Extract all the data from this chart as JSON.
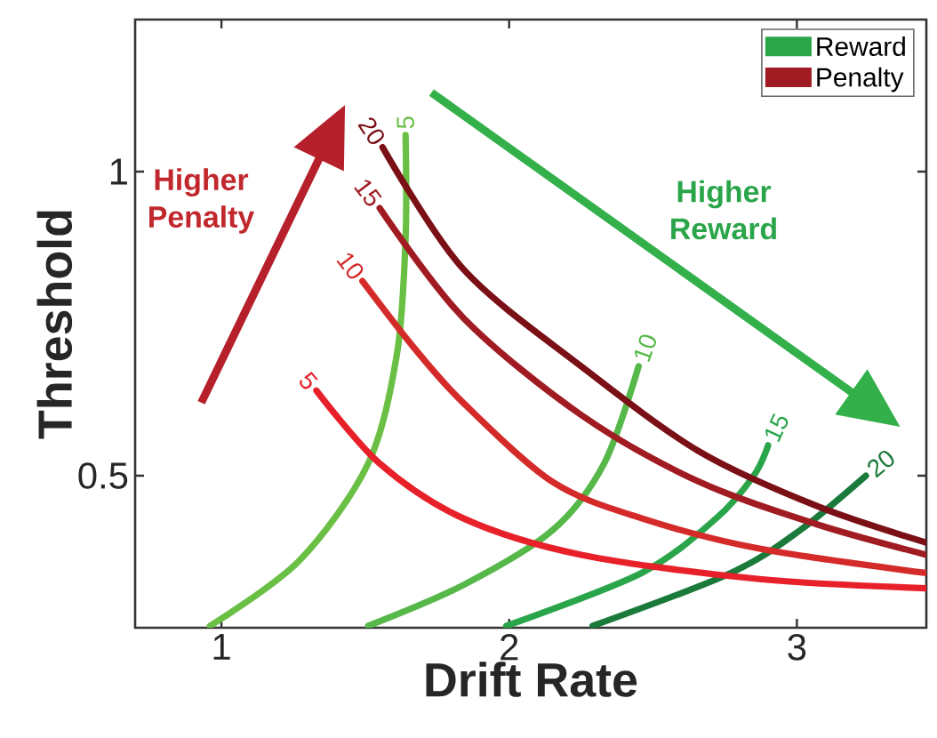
{
  "chart_data": {
    "type": "line",
    "xlabel": "Drift Rate",
    "ylabel": "Threshold",
    "xlim": [
      0.7,
      3.45
    ],
    "ylim": [
      0.25,
      1.25
    ],
    "xticks": [
      1,
      2,
      3
    ],
    "yticks": [
      0.5,
      1
    ],
    "legend": "top right",
    "marker": "none",
    "line_style": "solid",
    "grid": false,
    "series": [
      {
        "color": "#6abf45",
        "x": [
          0.96,
          1.27,
          1.51,
          1.61,
          1.64,
          1.64
        ],
        "values": [
          0.253,
          0.36,
          0.52,
          0.7,
          0.89,
          1.06
        ]
      },
      {
        "color": "#55b848",
        "x": [
          1.51,
          1.84,
          2.15,
          2.33,
          2.45
        ],
        "values": [
          0.253,
          0.32,
          0.41,
          0.52,
          0.68
        ]
      },
      {
        "name": "Reward",
        "color": "#2aa54a",
        "x": [
          1.99,
          2.46,
          2.72,
          2.85,
          2.9
        ],
        "values": [
          0.253,
          0.34,
          0.43,
          0.5,
          0.55
        ]
      },
      {
        "color": "#1a7a3a",
        "x": [
          2.29,
          2.77,
          3.01,
          3.24
        ],
        "values": [
          0.253,
          0.34,
          0.41,
          0.5
        ]
      },
      {
        "color": "#e8202a",
        "x": [
          1.33,
          1.55,
          1.84,
          2.25,
          2.87,
          3.45
        ],
        "values": [
          0.64,
          0.52,
          0.43,
          0.37,
          0.33,
          0.315
        ]
      },
      {
        "color": "#d42a2a",
        "x": [
          1.49,
          1.67,
          1.84,
          2.15,
          2.46,
          2.87,
          3.45
        ],
        "values": [
          0.82,
          0.71,
          0.62,
          0.49,
          0.43,
          0.38,
          0.34
        ]
      },
      {
        "name": "Penalty",
        "color": "#a01c22",
        "x": [
          1.55,
          1.84,
          2.25,
          2.66,
          3.07,
          3.45
        ],
        "values": [
          0.94,
          0.76,
          0.6,
          0.49,
          0.42,
          0.37
        ]
      },
      {
        "color": "#7a1016",
        "x": [
          1.56,
          1.84,
          2.25,
          2.66,
          3.07,
          3.45
        ],
        "values": [
          1.04,
          0.84,
          0.68,
          0.54,
          0.45,
          0.39
        ]
      }
    ],
    "annotations": [
      {
        "text": "5",
        "x": 1.64,
        "y": 1.06
      },
      {
        "text": "10",
        "x": 2.45,
        "y": 0.68
      },
      {
        "text": "15",
        "x": 2.9,
        "y": 0.55
      },
      {
        "text": "20",
        "x": 3.24,
        "y": 0.5
      },
      {
        "text": "5",
        "x": 1.33,
        "y": 0.64
      },
      {
        "text": "10",
        "x": 1.49,
        "y": 0.82
      },
      {
        "text": "15",
        "x": 1.55,
        "y": 0.94
      },
      {
        "text": "20",
        "x": 1.56,
        "y": 1.04
      },
      "Higher Penalty",
      "Higher Reward"
    ]
  }
}
